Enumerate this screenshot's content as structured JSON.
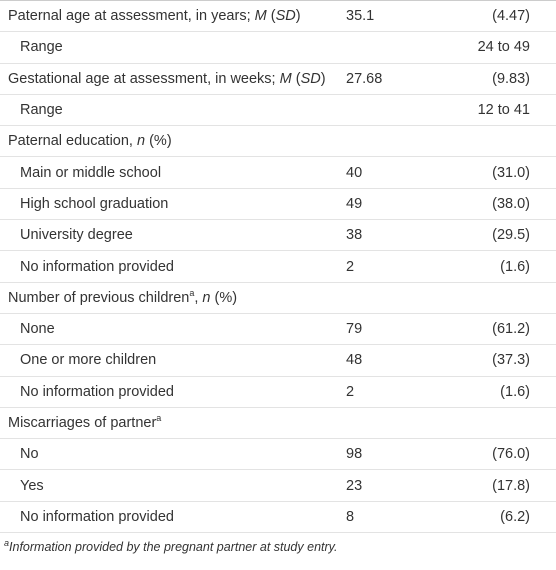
{
  "table": {
    "rows": [
      {
        "label": [
          "Paternal age at assessment, in years; ",
          {
            "text": "M",
            "style": "italic"
          },
          " (",
          {
            "text": "SD",
            "style": "italic"
          },
          ")"
        ],
        "indent": false,
        "n": "35.1",
        "stat": "(4.47)"
      },
      {
        "label": [
          "Range"
        ],
        "indent": true,
        "stat": "24 to 49"
      },
      {
        "label": [
          "Gestational age at assessment, in weeks; ",
          {
            "text": "M",
            "style": "italic"
          },
          " (",
          {
            "text": "SD",
            "style": "italic"
          },
          ")"
        ],
        "indent": false,
        "n": "27.68",
        "stat": "(9.83)"
      },
      {
        "label": [
          "Range"
        ],
        "indent": true,
        "stat": "12 to 41"
      },
      {
        "label": [
          "Paternal education, ",
          {
            "text": "n",
            "style": "italic"
          },
          " (%)"
        ],
        "indent": false
      },
      {
        "label": [
          "Main or middle school"
        ],
        "indent": true,
        "n": "40",
        "stat": "(31.0)"
      },
      {
        "label": [
          "High school graduation"
        ],
        "indent": true,
        "n": "49",
        "stat": "(38.0)"
      },
      {
        "label": [
          "University degree"
        ],
        "indent": true,
        "n": "38",
        "stat": "(29.5)"
      },
      {
        "label": [
          "No information provided"
        ],
        "indent": true,
        "n": "2",
        "stat": "(1.6)"
      },
      {
        "label": [
          "Number of previous children",
          {
            "text": "a",
            "style": "sup"
          },
          ", ",
          {
            "text": "n",
            "style": "italic"
          },
          " (%)"
        ],
        "indent": false
      },
      {
        "label": [
          "None"
        ],
        "indent": true,
        "n": "79",
        "stat": "(61.2)"
      },
      {
        "label": [
          "One or more children"
        ],
        "indent": true,
        "n": "48",
        "stat": "(37.3)"
      },
      {
        "label": [
          "No information provided"
        ],
        "indent": true,
        "n": "2",
        "stat": "(1.6)"
      },
      {
        "label": [
          "Miscarriages of partner",
          {
            "text": "a",
            "style": "sup"
          }
        ],
        "indent": false
      },
      {
        "label": [
          "No"
        ],
        "indent": true,
        "n": "98",
        "stat": "(76.0)"
      },
      {
        "label": [
          "Yes"
        ],
        "indent": true,
        "n": "23",
        "stat": "(17.8)"
      },
      {
        "label": [
          "No information provided"
        ],
        "indent": true,
        "n": "8",
        "stat": "(6.2)"
      }
    ]
  },
  "footnote": [
    {
      "text": "a",
      "style": "sup"
    },
    "Information provided by the pregnant partner at study entry."
  ]
}
